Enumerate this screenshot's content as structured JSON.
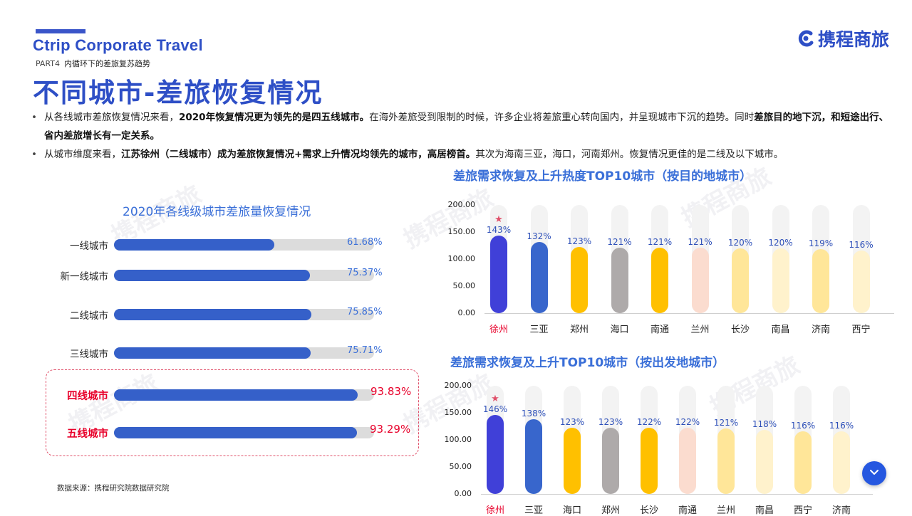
{
  "header": {
    "brand_en": "Ctrip Corporate Travel",
    "part_tag": "PART4",
    "part_title": "内循环下的差旅复苏趋势",
    "title": "不同城市-差旅恢复情况",
    "logo_text": "携程商旅",
    "logo_icon": "ctrip-logo-icon"
  },
  "watermark_text": "携程商旅",
  "bullets": [
    {
      "p1": "从各线城市差旅恢复情况来看，",
      "b1": "2020年恢复情况更为领先的是四五线城市。",
      "p2": "在海外差旅受到限制的时候，许多企业将差旅重心转向国内，并呈现城市下沉的趋势。同时",
      "b2": "差旅目的地下沉，和短途出行、省内差旅增长有一定关系。"
    },
    {
      "p1": "从城市维度来看，",
      "b1": "江苏徐州（二线城市）成为差旅恢复情况+需求上升情况均领先的城市，高居榜首。",
      "p2": "其次为海南三亚，海口，河南郑州。恢复情况更佳的是二线及以下城市。"
    }
  ],
  "source": "数据来源：携程研究院数据研究院",
  "colors": {
    "accent": "#2e4fc6",
    "highlight": "#e8002a",
    "bar": "#3560c9"
  },
  "chart_data": [
    {
      "type": "bar",
      "orientation": "horizontal",
      "title": "2020年各线级城市差旅量恢复情况",
      "categories": [
        "一线城市",
        "新一线城市",
        "二线城市",
        "三线城市",
        "四线城市",
        "五线城市"
      ],
      "values": [
        61.68,
        75.37,
        75.85,
        75.71,
        93.83,
        93.29
      ],
      "value_labels": [
        "61.68%",
        "75.37%",
        "75.85%",
        "75.71%",
        "93.83%",
        "93.29%"
      ],
      "highlighted": [
        "四线城市",
        "五线城市"
      ],
      "xlim": [
        0,
        100
      ]
    },
    {
      "type": "bar",
      "title": "差旅需求恢复及上升热度TOP10城市（按目的地城市）",
      "categories": [
        "徐州",
        "三亚",
        "郑州",
        "海口",
        "南通",
        "兰州",
        "长沙",
        "南昌",
        "济南",
        "西宁"
      ],
      "values": [
        143,
        132,
        123,
        121,
        121,
        121,
        120,
        120,
        119,
        116
      ],
      "value_labels": [
        "143%",
        "132%",
        "123%",
        "121%",
        "121%",
        "121%",
        "120%",
        "120%",
        "119%",
        "116%"
      ],
      "colors": [
        "#4040d8",
        "#3866cc",
        "#ffc000",
        "#aeaaaa",
        "#ffc000",
        "#fbdccf",
        "#ffe699",
        "#fff2cc",
        "#ffe699",
        "#fff2cc"
      ],
      "y_ticks": [
        "200.00",
        "150.00",
        "100.00",
        "50.00",
        "0.00"
      ],
      "ylim": [
        0,
        200
      ],
      "highlighted": [
        "徐州"
      ]
    },
    {
      "type": "bar",
      "title": "差旅需求恢复及上升TOP10城市（按出发地城市）",
      "categories": [
        "徐州",
        "三亚",
        "海口",
        "郑州",
        "长沙",
        "南通",
        "兰州",
        "南昌",
        "西宁",
        "济南"
      ],
      "values": [
        146,
        138,
        123,
        123,
        122,
        122,
        121,
        118,
        116,
        116
      ],
      "value_labels": [
        "146%",
        "138%",
        "123%",
        "123%",
        "122%",
        "122%",
        "121%",
        "118%",
        "116%",
        "116%"
      ],
      "colors": [
        "#4040d8",
        "#3866cc",
        "#ffc000",
        "#aeaaaa",
        "#ffc000",
        "#fbdccf",
        "#ffe699",
        "#fff2cc",
        "#ffe699",
        "#fff2cc"
      ],
      "y_ticks": [
        "200.00",
        "150.00",
        "100.00",
        "50.00",
        "0.00"
      ],
      "ylim": [
        0,
        200
      ],
      "highlighted": [
        "徐州"
      ]
    }
  ]
}
